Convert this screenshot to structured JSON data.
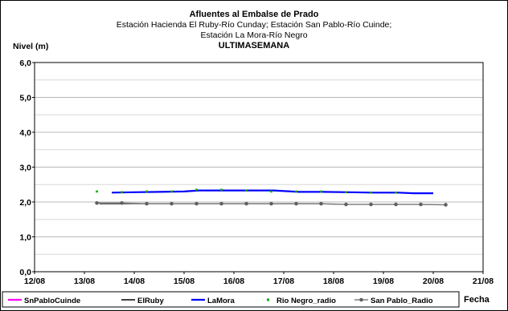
{
  "chart_data": {
    "type": "line",
    "title_lines": [
      "Afluentes al Embalse de Prado",
      "Estación Hacienda El Ruby-Río Cunday; Estación San Pablo-Río Cuinde;",
      "Estación La Mora-Río Negro",
      "ULTIMASEMANA"
    ],
    "ylabel": "Nivel (m)",
    "xlabel": "Fecha",
    "ylim": [
      0,
      6
    ],
    "xlim": [
      0,
      9
    ],
    "y_ticks": [
      "0,0",
      "1,0",
      "2,0",
      "3,0",
      "4,0",
      "5,0",
      "6,0"
    ],
    "x_ticks": [
      "12/08",
      "13/08",
      "14/08",
      "15/08",
      "16/08",
      "17/08",
      "18/08",
      "19/08",
      "20/08",
      "21/08"
    ],
    "grid": true,
    "legend_position": "bottom",
    "series": [
      {
        "name": "SnPabloCuinde",
        "color": "#ff00ff",
        "style": "line",
        "points": []
      },
      {
        "name": "ElRuby",
        "color": "#000000",
        "style": "line",
        "points": [
          [
            1.3,
            1.95
          ],
          [
            1.7,
            1.95
          ],
          [
            2.2,
            1.95
          ],
          [
            2.7,
            1.95
          ],
          [
            3.2,
            1.95
          ],
          [
            3.7,
            1.95
          ],
          [
            4.2,
            1.95
          ],
          [
            4.7,
            1.95
          ],
          [
            5.2,
            1.95
          ],
          [
            5.7,
            1.95
          ],
          [
            6.2,
            1.93
          ],
          [
            6.7,
            1.93
          ],
          [
            7.2,
            1.93
          ],
          [
            7.7,
            1.93
          ],
          [
            8.2,
            1.92
          ]
        ]
      },
      {
        "name": "LaMora",
        "color": "#0000ff",
        "style": "line",
        "points": [
          [
            1.55,
            2.27
          ],
          [
            2.0,
            2.28
          ],
          [
            2.5,
            2.29
          ],
          [
            3.0,
            2.3
          ],
          [
            3.3,
            2.33
          ],
          [
            3.8,
            2.33
          ],
          [
            4.3,
            2.33
          ],
          [
            4.8,
            2.33
          ],
          [
            5.3,
            2.29
          ],
          [
            5.8,
            2.29
          ],
          [
            6.3,
            2.28
          ],
          [
            6.8,
            2.27
          ],
          [
            7.3,
            2.27
          ],
          [
            7.6,
            2.25
          ],
          [
            8.0,
            2.25
          ]
        ]
      },
      {
        "name": "Rio Negro_radio",
        "color": "#00aa00",
        "style": "dot",
        "points": [
          [
            1.25,
            2.3
          ],
          [
            1.75,
            2.28
          ],
          [
            2.25,
            2.3
          ],
          [
            2.75,
            2.3
          ],
          [
            3.25,
            2.35
          ],
          [
            3.75,
            2.35
          ],
          [
            4.25,
            2.33
          ],
          [
            4.75,
            2.3
          ],
          [
            5.25,
            2.3
          ],
          [
            5.75,
            2.3
          ],
          [
            6.25,
            2.28
          ],
          [
            6.75,
            2.27
          ],
          [
            7.25,
            2.27
          ]
        ]
      },
      {
        "name": "San Pablo_Radio",
        "color": "#808080",
        "style": "line-marker",
        "points": [
          [
            1.25,
            1.97
          ],
          [
            1.75,
            1.97
          ],
          [
            2.25,
            1.95
          ],
          [
            2.75,
            1.95
          ],
          [
            3.25,
            1.95
          ],
          [
            3.75,
            1.95
          ],
          [
            4.25,
            1.95
          ],
          [
            4.75,
            1.95
          ],
          [
            5.25,
            1.95
          ],
          [
            5.75,
            1.95
          ],
          [
            6.25,
            1.93
          ],
          [
            6.75,
            1.93
          ],
          [
            7.25,
            1.93
          ],
          [
            7.75,
            1.93
          ],
          [
            8.25,
            1.92
          ]
        ]
      }
    ]
  }
}
